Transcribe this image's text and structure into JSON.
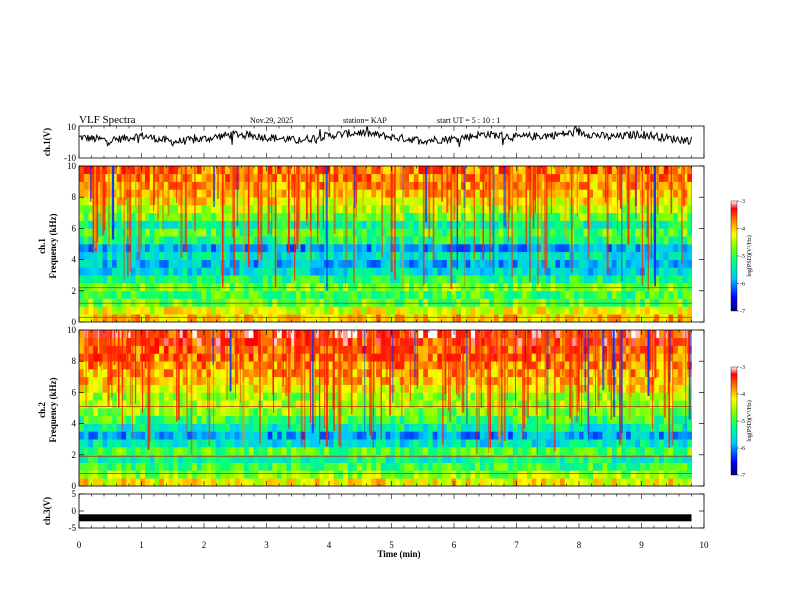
{
  "header": {
    "title": "VLF Spectra",
    "date": "Nov.29, 2025",
    "station": "station= KAP",
    "start": "start  UT  =   5  : 10 : 1"
  },
  "colors": {
    "waveform": "#000000",
    "colormap": [
      "#000080",
      "#0000ff",
      "#00c8ff",
      "#00ff80",
      "#80ff00",
      "#ffff00",
      "#ff8000",
      "#ff0000",
      "#ffffff"
    ]
  },
  "chart_data": [
    {
      "type": "line",
      "id": "ch1-waveform",
      "ylabel": "ch.1(V)",
      "ylim": [
        -10,
        10
      ],
      "yticks": [
        "10",
        "-10"
      ],
      "xlim": [
        0,
        10
      ],
      "description_series": "ch.1 voltage envelope vs time",
      "x": [
        0,
        0.5,
        1,
        1.5,
        2,
        2.5,
        3,
        3.5,
        4,
        4.5,
        5,
        5.5,
        6,
        6.5,
        7,
        7.5,
        8,
        8.5,
        9,
        9.5,
        9.8
      ],
      "y": [
        3,
        1,
        4,
        0,
        2,
        5,
        3,
        1,
        4,
        6,
        3,
        1,
        2,
        5,
        3,
        4,
        6,
        3,
        5,
        2,
        1
      ]
    },
    {
      "type": "heatmap",
      "id": "ch1-spectrogram",
      "ylabel": "ch.1\nFrequency (kHz)",
      "ylabel_line1": "ch.1",
      "ylabel_line2": "Frequency  (kHz)",
      "ylim": [
        0,
        10
      ],
      "yticks": [
        "0",
        "2",
        "4",
        "6",
        "8",
        "10"
      ],
      "xlim": [
        0,
        10
      ],
      "colorbar": {
        "label": "log(PSD)(V²/Hz)",
        "range": [
          -7,
          -3
        ],
        "ticks": [
          "-3",
          "-4",
          "-5",
          "-6",
          "-7"
        ]
      },
      "freq_bands_kHz": [
        0,
        0.5,
        1,
        1.5,
        2,
        2.5,
        3,
        3.5,
        4,
        4.5,
        5,
        5.5,
        6,
        6.5,
        7,
        7.5,
        8,
        8.5,
        9,
        9.5,
        10
      ],
      "band_log_psd": [
        -4.0,
        -4.3,
        -4.8,
        -5.0,
        -4.7,
        -5.2,
        -5.6,
        -5.8,
        -5.5,
        -5.9,
        -5.1,
        -4.9,
        -5.3,
        -4.8,
        -4.5,
        -4.2,
        -4.0,
        -3.9,
        -3.8,
        -3.7,
        -3.6
      ],
      "horizontal_lines_kHz": [
        2.2,
        1.2,
        0.3
      ]
    },
    {
      "type": "heatmap",
      "id": "ch2-spectrogram",
      "ylabel_line1": "ch.2",
      "ylabel_line2": "Frequency  (kHz)",
      "ylim": [
        0,
        10
      ],
      "yticks": [
        "0",
        "2",
        "4",
        "6",
        "8",
        "10"
      ],
      "xlim": [
        0,
        10
      ],
      "colorbar": {
        "label": "log(PSD)(V²/Hz)",
        "range": [
          -7,
          -3
        ],
        "ticks": [
          "-3",
          "-4",
          "-5",
          "-6",
          "-7"
        ]
      },
      "freq_bands_kHz": [
        0,
        0.5,
        1,
        1.5,
        2,
        2.5,
        3,
        3.5,
        4,
        4.5,
        5,
        5.5,
        6,
        6.5,
        7,
        7.5,
        8,
        8.5,
        9,
        9.5,
        10
      ],
      "band_log_psd": [
        -4.2,
        -4.6,
        -5.0,
        -5.3,
        -4.9,
        -5.5,
        -5.9,
        -5.4,
        -5.0,
        -4.7,
        -4.5,
        -4.6,
        -4.2,
        -4.0,
        -3.9,
        -3.8,
        -3.7,
        -3.6,
        -3.5,
        -3.4,
        -3.4
      ],
      "horizontal_lines_kHz": [
        1.9,
        0.8,
        5.1
      ]
    },
    {
      "type": "line",
      "id": "ch3-signal",
      "ylabel": "ch.3(V)",
      "ylim": [
        -5,
        5
      ],
      "yticks": [
        "5",
        "0",
        "-5"
      ],
      "xlim": [
        0,
        10
      ],
      "xlabel": "Time  (min)",
      "xticks": [
        "0",
        "1",
        "2",
        "3",
        "4",
        "5",
        "6",
        "7",
        "8",
        "9",
        "10"
      ],
      "x": [
        0,
        9.8
      ],
      "y": [
        -2,
        -2
      ]
    }
  ]
}
